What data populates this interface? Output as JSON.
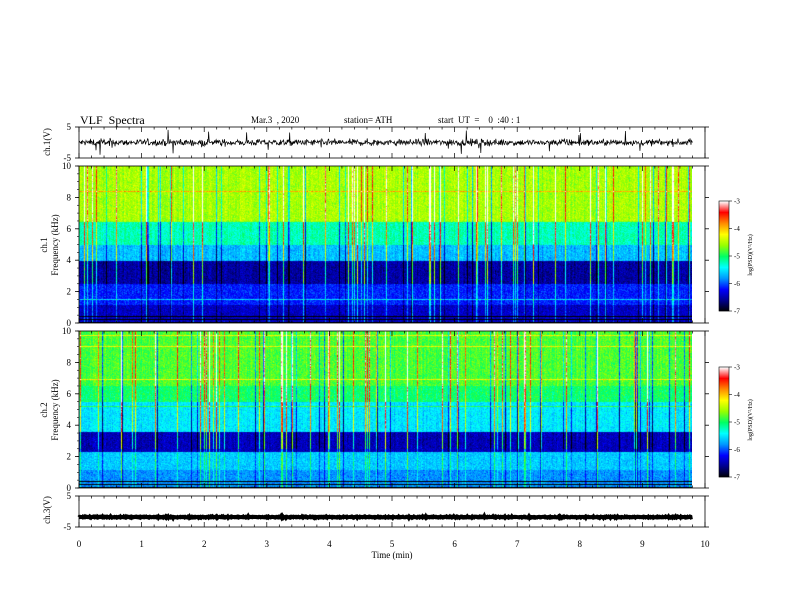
{
  "header": {
    "title": "VLF  Spectra",
    "date": "Mar.3  , 2020",
    "station": "station= ATH",
    "start": "start  UT  =    0  :40 : 1"
  },
  "chart_data": {
    "type": "heatmap",
    "xlabel": "Time  (min)",
    "xlim": [
      0,
      10
    ],
    "xticks": [
      "0",
      "1",
      "2",
      "3",
      "4",
      "5",
      "6",
      "7",
      "8",
      "9",
      "10"
    ],
    "panels": [
      {
        "id": "ch1-waveform",
        "type": "line",
        "ylabel": "ch.1(V)",
        "ylim": [
          -5,
          5
        ],
        "yticks": [
          "5",
          "-5"
        ]
      },
      {
        "id": "ch1-spectrogram",
        "type": "heatmap",
        "ylabel_channel": "ch.1",
        "ylabel": "Frequency  (kHz)",
        "ylim": [
          0,
          10
        ],
        "yticks": [
          "0",
          "2",
          "4",
          "6",
          "8",
          "10"
        ],
        "data_end_min": 9.8
      },
      {
        "id": "ch2-spectrogram",
        "type": "heatmap",
        "ylabel_channel": "ch.2",
        "ylabel": "Frequency  (kHz)",
        "ylim": [
          0,
          10
        ],
        "yticks": [
          "0",
          "2",
          "4",
          "6",
          "8",
          "10"
        ],
        "data_end_min": 9.8
      },
      {
        "id": "ch3-waveform",
        "type": "line",
        "ylabel": "ch.3(V)",
        "ylim": [
          -5,
          5
        ],
        "yticks": [
          "5",
          "-5"
        ]
      }
    ],
    "colorbar": {
      "label": "log(PSD)(V²/Hz)",
      "range": [
        -7,
        -3
      ],
      "ticks": [
        "-3",
        "-4",
        "-5",
        "-6",
        "-7"
      ],
      "colors": [
        "#000000",
        "#00008b",
        "#0000ff",
        "#0096ff",
        "#00ffff",
        "#00ff64",
        "#96ff00",
        "#ffff00",
        "#ff8c00",
        "#ff0000",
        "#ffffff"
      ]
    }
  }
}
